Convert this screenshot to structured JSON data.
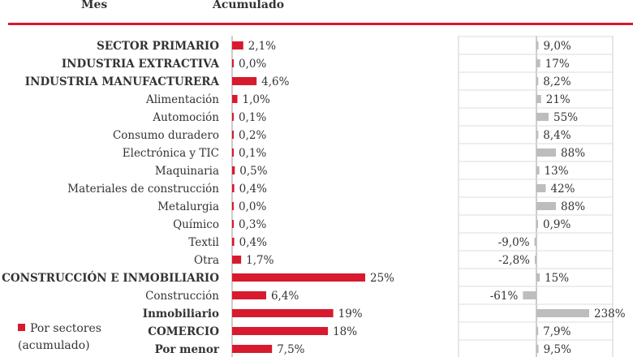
{
  "header": {
    "col1": "Mes",
    "col2": "Acumulado"
  },
  "legend": {
    "line1": "Por sectores",
    "line2": "(acumulado)"
  },
  "colors": {
    "red": "#d71a2e",
    "gray": "#bdbdbd",
    "rule": "#d71a2e",
    "axis": "#999999"
  },
  "chart_data": {
    "type": "bar",
    "categories": [
      "SECTOR PRIMARIO",
      "INDUSTRIA EXTRACTIVA",
      "INDUSTRIA MANUFACTURERA",
      "Alimentación",
      "Automoción",
      "Consumo duradero",
      "Electrónica y TIC",
      "Maquinaria",
      "Materiales de construcción",
      "Metalurgia",
      "Químico",
      "Textil",
      "Otra",
      "CONSTRUCCIÓN E INMOBILIARIO",
      "Construcción",
      "Inmobiliario",
      "COMERCIO",
      "Por menor"
    ],
    "category_bold": [
      true,
      true,
      true,
      false,
      false,
      false,
      false,
      false,
      false,
      false,
      false,
      false,
      false,
      true,
      false,
      true,
      true,
      true
    ],
    "series": [
      {
        "name": "Por sectores (acumulado)",
        "values": [
          2.1,
          0.0,
          4.6,
          1.0,
          0.1,
          0.2,
          0.1,
          0.5,
          0.4,
          0.0,
          0.3,
          0.4,
          1.7,
          25,
          6.4,
          19,
          18,
          7.5
        ],
        "labels": [
          "2,1%",
          "0,0%",
          "4,6%",
          "1,0%",
          "0,1%",
          "0,2%",
          "0,1%",
          "0,5%",
          "0,4%",
          "0,0%",
          "0,3%",
          "0,4%",
          "1,7%",
          "25%",
          "6,4%",
          "19%",
          "18%",
          "7,5%"
        ]
      },
      {
        "values": [
          9.0,
          17,
          8.2,
          21,
          55,
          8.4,
          88,
          13,
          42,
          88,
          0.9,
          -9.0,
          -2.8,
          15,
          -61,
          238,
          7.9,
          9.5
        ],
        "labels": [
          "9,0%",
          "17%",
          "8,2%",
          "21%",
          "55%",
          "8,4%",
          "88%",
          "13%",
          "42%",
          "88%",
          "0,9%",
          "-9,0%",
          "-2,8%",
          "15%",
          "-61%",
          "238%",
          "7,9%",
          "9,5%"
        ]
      }
    ],
    "legend_position": "bottom-left"
  }
}
